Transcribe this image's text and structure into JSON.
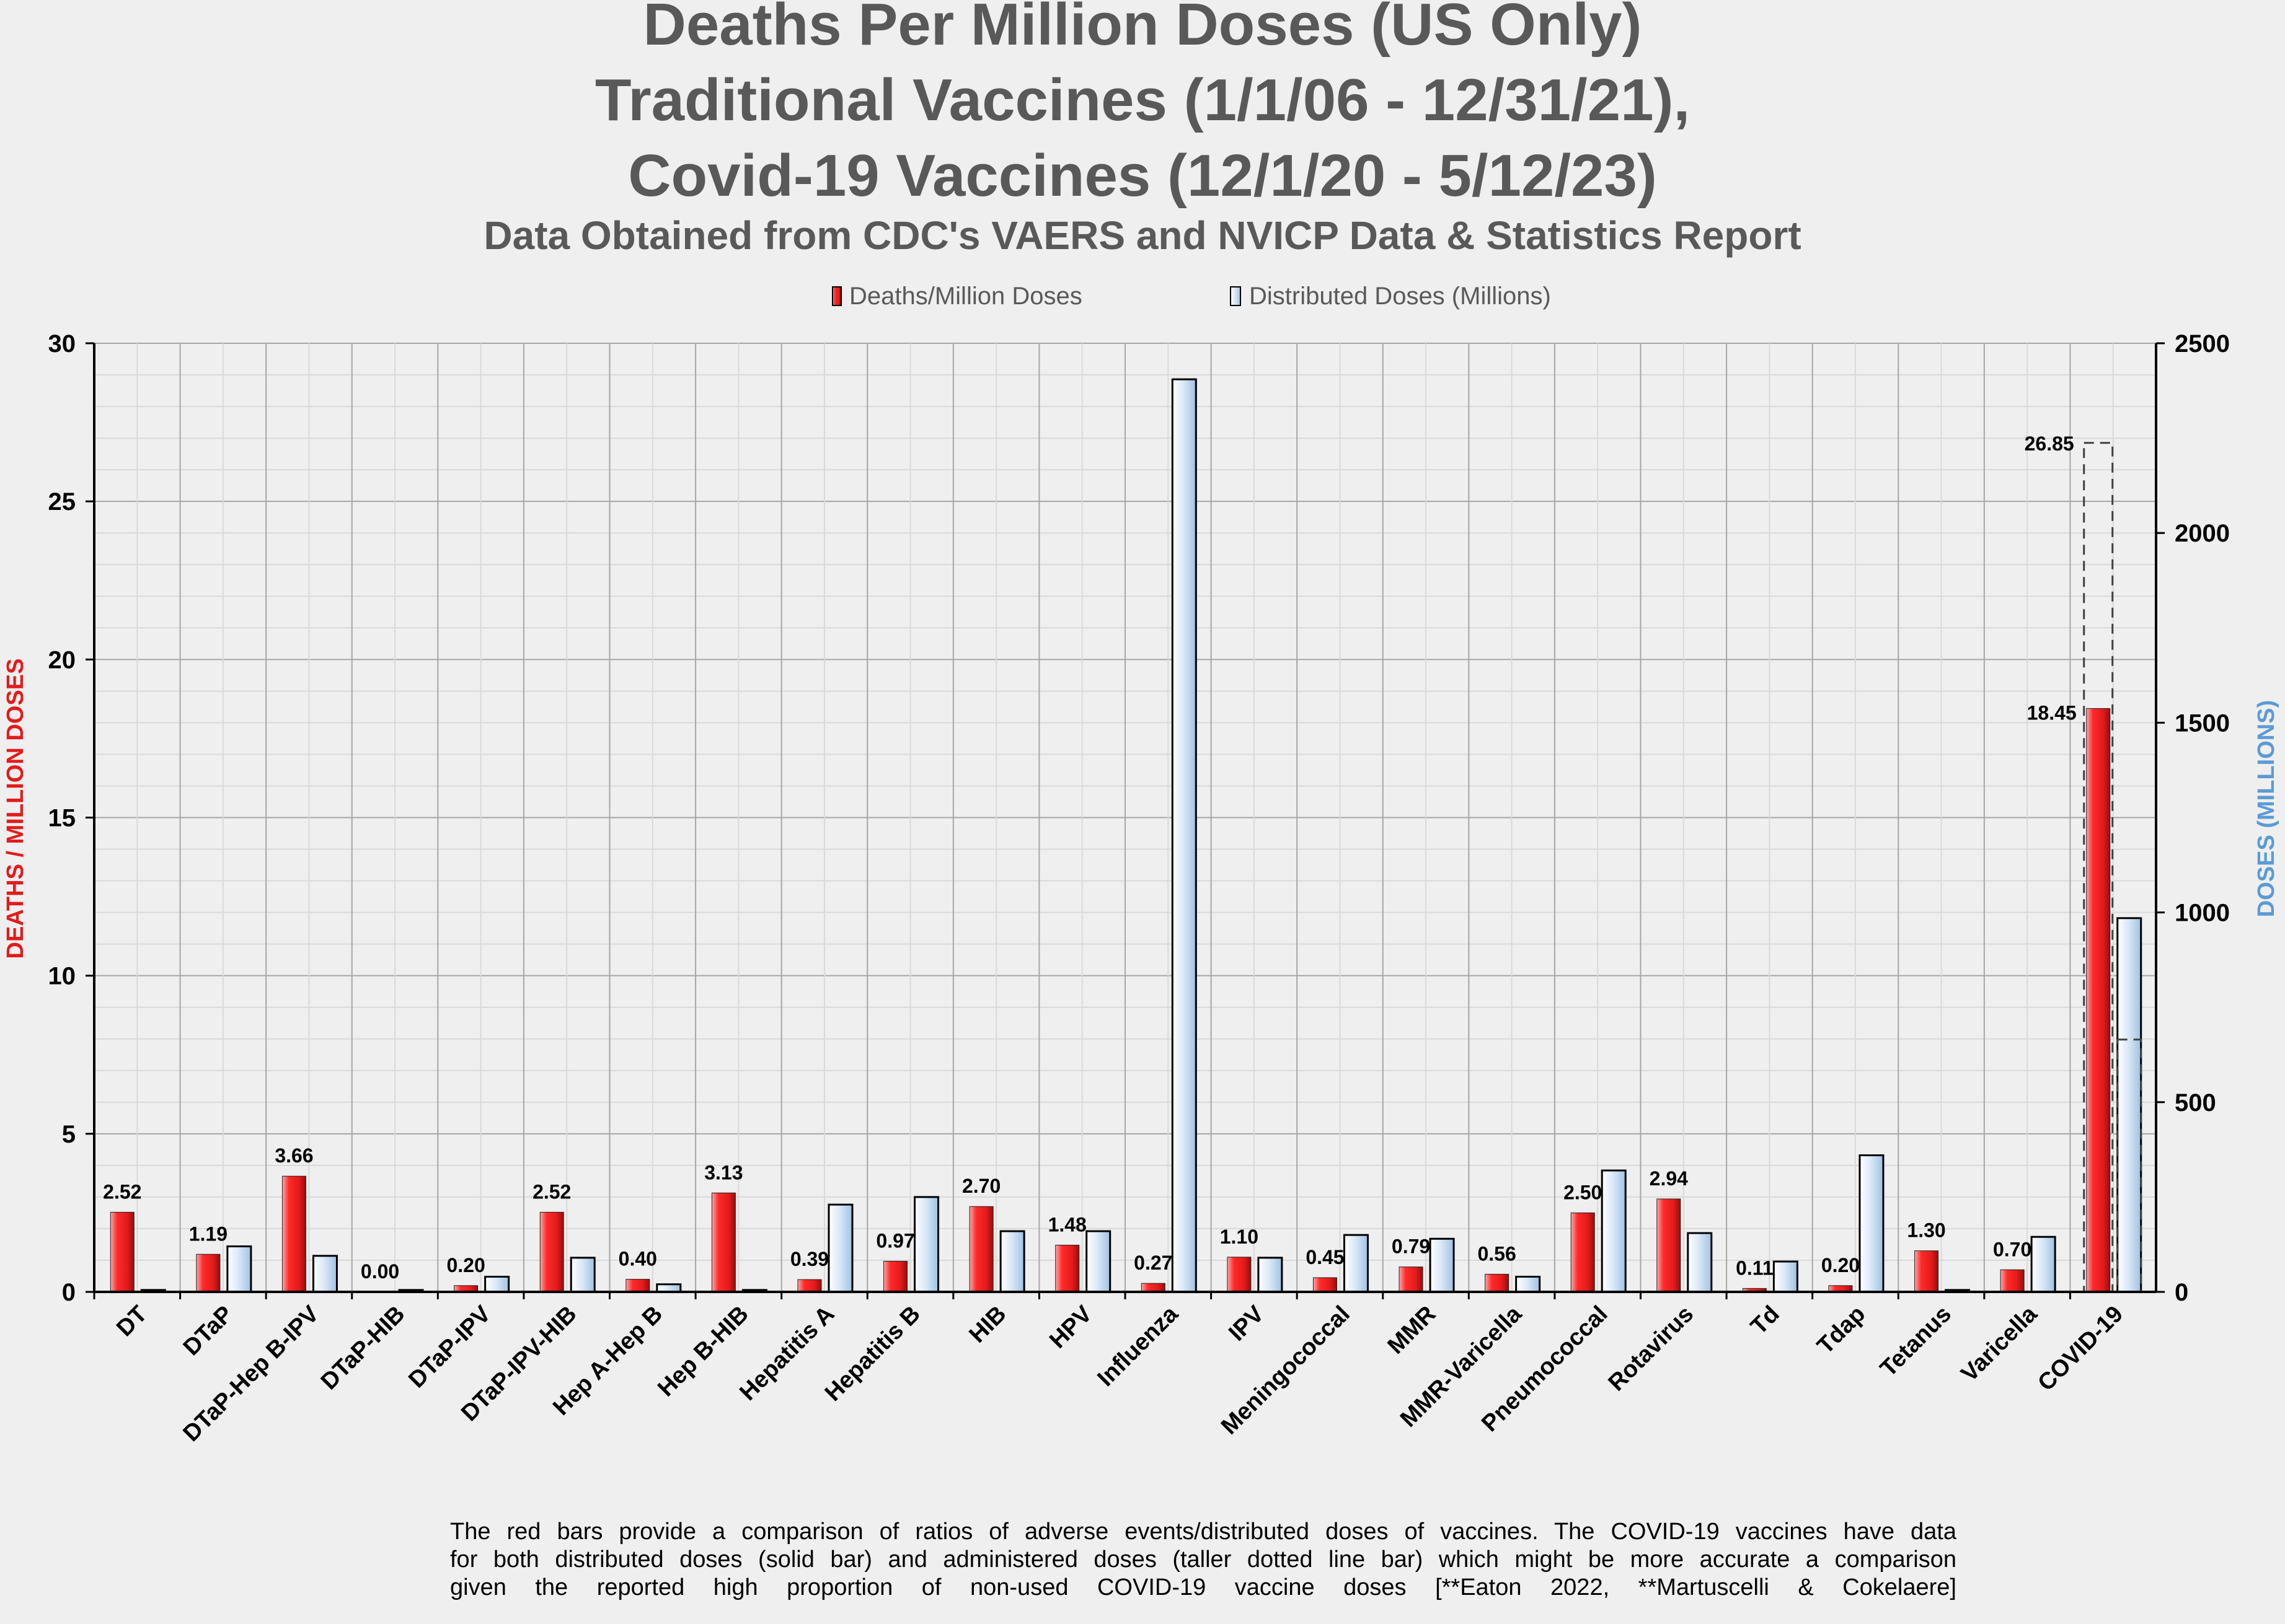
{
  "chart_data": {
    "type": "bar",
    "title_lines": [
      "Deaths Per Million Doses (US Only)",
      "Traditional Vaccines (1/1/06 - 12/31/21),",
      "Covid-19 Vaccines (12/1/20 - 5/12/23)"
    ],
    "subtitle": "Data Obtained from CDC's VAERS and NVICP Data & Statistics Report",
    "ylabel": "DEATHS / MILLION DOSES",
    "y2label": "DOSES (MILLIONS)",
    "ylim": [
      0,
      30
    ],
    "y2lim": [
      0,
      2500
    ],
    "yticks": [
      0,
      5,
      10,
      15,
      20,
      25,
      30
    ],
    "y2ticks": [
      0,
      500,
      1000,
      1500,
      2000,
      2500
    ],
    "grid": true,
    "legend_position": "top-center",
    "categories": [
      "DT",
      "DTaP",
      "DTaP-Hep B-IPV",
      "DTaP-HIB",
      "DTaP-IPV",
      "DTaP-IPV-HIB",
      "Hep A-Hep B",
      "Hep B-HIB",
      "Hepatitis A",
      "Hepatitis B",
      "HIB",
      "HPV",
      "Influenza",
      "IPV",
      "Meningococcal",
      "MMR",
      "MMR-Varicella",
      "Pneumococcal",
      "Rotavirus",
      "Td",
      "Tdap",
      "Tetanus",
      "Varicella",
      "COVID-19"
    ],
    "series": [
      {
        "name": "Deaths/Million Doses",
        "axis": "left",
        "color": "#e31b1b",
        "values": [
          2.52,
          1.19,
          3.66,
          0.0,
          0.2,
          2.52,
          0.4,
          3.13,
          0.39,
          0.97,
          2.7,
          1.48,
          0.27,
          1.1,
          0.45,
          0.79,
          0.56,
          2.5,
          2.94,
          0.11,
          0.2,
          1.3,
          0.7,
          18.45
        ],
        "labels": [
          "2.52",
          "1.19",
          "3.66",
          "0.00",
          "0.20",
          "2.52",
          "0.40",
          "3.13",
          "0.39",
          "0.97",
          "2.70",
          "1.48",
          "0.27",
          "1.10",
          "0.45",
          "0.79",
          "0.56",
          "2.50",
          "2.94",
          "0.11",
          "0.20",
          "1.30",
          "0.70",
          "18.45"
        ]
      },
      {
        "name": "Distributed Doses (Millions)",
        "axis": "right",
        "color": "#bdd7ee",
        "values": [
          5,
          120,
          95,
          5,
          40,
          90,
          20,
          5,
          230,
          250,
          160,
          160,
          2405,
          90,
          150,
          140,
          40,
          320,
          155,
          80,
          360,
          5,
          145,
          985
        ]
      }
    ],
    "covid_administered": {
      "deaths_value": 26.85,
      "deaths_label": "26.85",
      "doses_value": 665
    }
  },
  "footnote_lines": [
    "The red bars provide a comparison of ratios of adverse events/distributed doses of vaccines. The COVID-19 vaccines have data",
    "for both distributed doses (solid bar) and administered doses (taller dotted line bar) which might be more accurate a comparison",
    "given the reported high proportion of non-used COVID-19 vaccine doses [**Eaton 2022, **Martuscelli & Cokelaere]"
  ]
}
